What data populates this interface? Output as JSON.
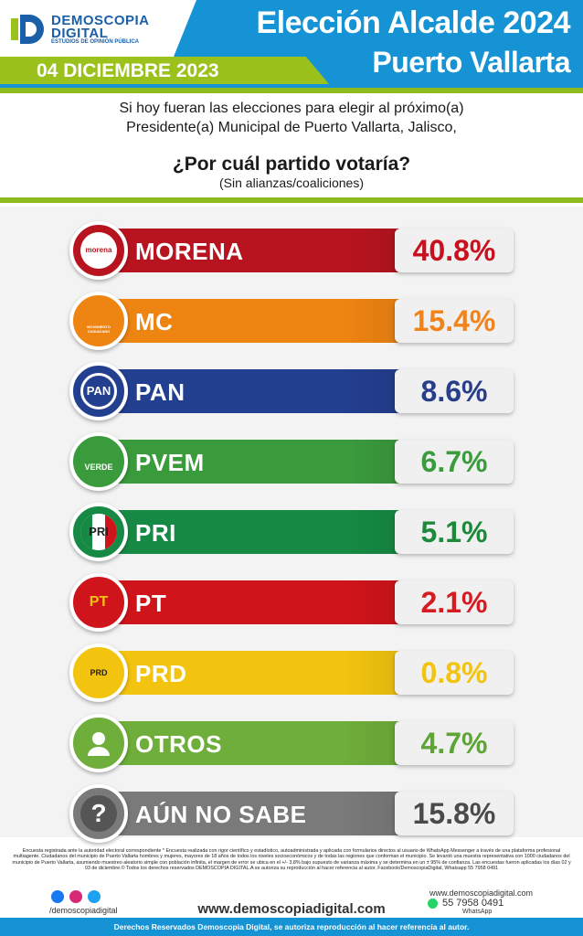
{
  "header": {
    "brand_line1": "DEMOSCOPIA",
    "brand_line2": "DIGITAL",
    "brand_tagline": "ESTUDIOS DE OPINIÓN PÚBLICA",
    "date": "04 DICIEMBRE 2023",
    "title_line1": "Elección Alcalde 2024",
    "title_line2": "Puerto Vallarta"
  },
  "question": {
    "line1": "Si hoy fueran las elecciones para elegir al próximo(a)",
    "line2": "Presidente(a) Municipal de Puerto Vallarta, Jalisco,",
    "main": "¿Por cuál partido votaría?",
    "sub": "(Sin alianzas/coaliciones)"
  },
  "chart_data": {
    "type": "bar",
    "orientation": "horizontal",
    "categories": [
      "MORENA",
      "MC",
      "PAN",
      "PVEM",
      "PRI",
      "PT",
      "PRD",
      "OTROS",
      "AÚN NO SABE"
    ],
    "values": [
      40.8,
      15.4,
      8.6,
      6.7,
      5.1,
      2.1,
      0.8,
      4.7,
      15.8
    ],
    "value_labels": [
      "40.8%",
      "15.4%",
      "8.6%",
      "6.7%",
      "5.1%",
      "2.1%",
      "0.8%",
      "4.7%",
      "15.8%"
    ],
    "colors": [
      "#b8141f",
      "#ee8412",
      "#233f8f",
      "#3a9b3d",
      "#168a44",
      "#d0141b",
      "#f2c40f",
      "#6fae3a",
      "#7a7a7a"
    ],
    "value_colors": [
      "#c8101e",
      "#f0841a",
      "#283e8a",
      "#3a9b3d",
      "#1c8a3a",
      "#d41c22",
      "#f2c40f",
      "#5fa437",
      "#4a4a4a"
    ],
    "emblems": [
      "morena",
      "mc",
      "pan",
      "verde",
      "pri",
      "pt",
      "prd",
      "person-icon",
      "question-icon"
    ],
    "emblem_text": [
      "morena",
      "MOVIMIENTO CIUDADANO",
      "PAN",
      "VERDE",
      "PRI",
      "PT",
      "PRD",
      "",
      "?"
    ]
  },
  "footer": {
    "note": "Encuesta registrada ante la autoridad electoral correspondiente * Encuesta realizada con rigor científico y estadístico, autoadministrada y aplicada con formularios directos al usuario de WhatsApp Messenger a través de una plataforma profesional multiagente. Ciudadanos del municipio de Puerto Vallarta hombres y mujeres, mayores de 18 años de todos los niveles socioeconómicos y de todas las regiones que conforman el municipio. Se levantó una muestra representativa con 1000 ciudadanos del municipio de Puerto Vallarta, asumiendo muestreo aleatorio simple con población infinita, el margen de error se ubica en el +/- 3.8% bajo supuesto de varianza máxima y se determina en un ± 95% de confianza. Las encuestas fueron aplicadas los días 02 y 03 de diciembre.© Todos los derechos reservados DEMOSCOPIA DIGITAL.A se autoriza su reproducción al hacer referencia al autor. Facebook/DemoscopiaDigital, Whatsapp 55 7958 0491",
    "handle": "/demoscopiadigital",
    "website": "www.demoscopiadigital.com",
    "contact_web": "www.demoscopiadigital.com",
    "phone": "55 7958 0491",
    "phone_label": "WhatsApp",
    "rights": "Derechos Reservados Demoscopia Digital, se autoriza reproducción al hacer referencia al autor."
  }
}
